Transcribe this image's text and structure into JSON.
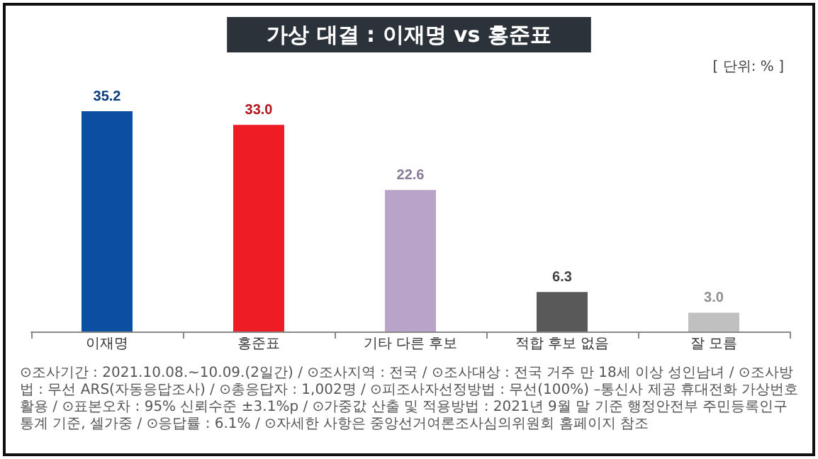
{
  "chart_data": {
    "type": "bar",
    "title": "가상 대결 : 이재명 vs 홍준표",
    "categories": [
      "이재명",
      "홍준표",
      "기타 다른 후보",
      "적합 후보 없음",
      "잘 모름"
    ],
    "values": [
      35.2,
      33.0,
      22.6,
      6.3,
      3.0
    ],
    "colors": [
      "#0b4ea2",
      "#ee1c25",
      "#b9a3c8",
      "#595959",
      "#c0c0c0"
    ],
    "value_labels": [
      "35.2",
      "33.0",
      "22.6",
      "6.3",
      "3.0"
    ],
    "grid": false,
    "tick_labels": "x",
    "annotations": [
      "[ 단위: % ]",
      "⊙조사기간 : 2021.10.08.~10.09.(2일간) / ⊙조사지역 : 전국 / ⊙조사대상 : 전국 거주 만 18세 이상 성인남녀 / ⊙조사방법 : 무선 ARS(자동응답조사) / ⊙총응답자 : 1,002명 / ⊙피조사자선정방법 : 무선(100%) –통신사 제공 휴대전화 가상번호 활용 / ⊙표본오차 : 95% 신뢰수준 ±3.1%p / ⊙가중값 산출 및 적용방법 : 2021년 9월 말 기준 행정안전부 주민등록인구통계 기준, 셀가중 / ⊙응답률 : 6.1% / ⊙자세한 사항은 중앙선거여론조사심의위원회 홈페이지 참조"
    ]
  }
}
